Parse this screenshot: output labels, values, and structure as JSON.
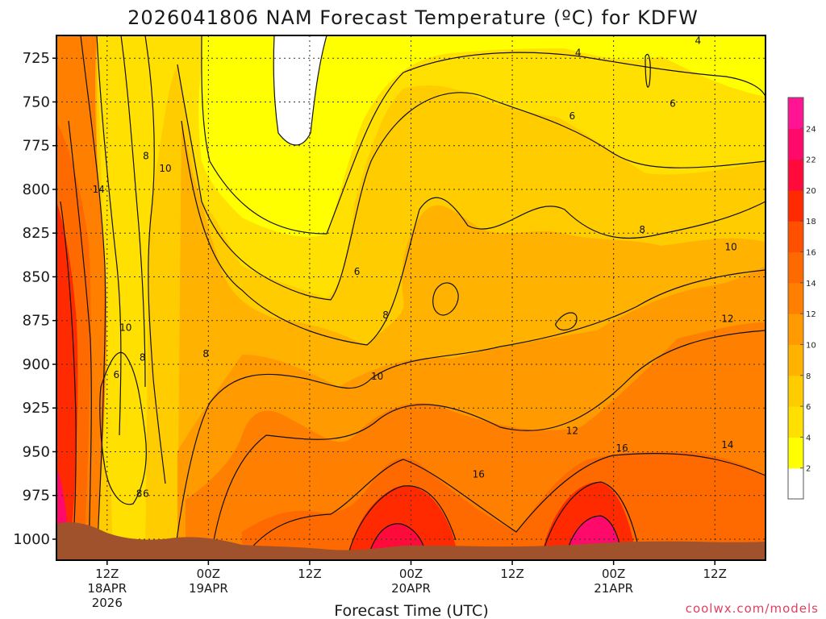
{
  "chart_data": {
    "type": "heatmap",
    "title": "2026041806 NAM Forecast Temperature (ºC) for KDFW",
    "xlabel": "Forecast Time (UTC)",
    "ylabel": "",
    "credit": "coolwx.com/models",
    "y_scale": "pressure (hPa), increasing downward",
    "y_ticks": [
      725,
      750,
      775,
      800,
      825,
      850,
      875,
      900,
      925,
      950,
      975,
      1000
    ],
    "ylim": [
      712,
      1012
    ],
    "x_ticks": [
      {
        "hour": 12,
        "lines": [
          "12Z",
          "18APR",
          "2026"
        ]
      },
      {
        "hour": 24,
        "lines": [
          "00Z",
          "19APR"
        ]
      },
      {
        "hour": 36,
        "lines": [
          "12Z"
        ]
      },
      {
        "hour": 48,
        "lines": [
          "00Z",
          "20APR"
        ]
      },
      {
        "hour": 60,
        "lines": [
          "12Z"
        ]
      },
      {
        "hour": 72,
        "lines": [
          "00Z",
          "21APR"
        ]
      },
      {
        "hour": 84,
        "lines": [
          "12Z"
        ]
      }
    ],
    "xlim": [
      6,
      90
    ],
    "grid": true,
    "colorbar": {
      "ticks": [
        2,
        4,
        6,
        8,
        10,
        12,
        14,
        16,
        18,
        20,
        22,
        24
      ],
      "colors": [
        "#ffffff",
        "#ffff00",
        "#ffe000",
        "#ffcc00",
        "#ffb200",
        "#ff9a00",
        "#ff8000",
        "#ff6a00",
        "#ff5000",
        "#ff2a00",
        "#ff0a3a",
        "#ff0a6a",
        "#ff1493"
      ]
    },
    "contour_labels": [
      {
        "value": "4",
        "hour": 67.8,
        "p": 722
      },
      {
        "value": "4",
        "hour": 82.0,
        "p": 715
      },
      {
        "value": "6",
        "hour": 67.1,
        "p": 758
      },
      {
        "value": "6",
        "hour": 79.0,
        "p": 751
      },
      {
        "value": "8",
        "hour": 16.6,
        "p": 781
      },
      {
        "value": "10",
        "hour": 18.9,
        "p": 788
      },
      {
        "value": "14",
        "hour": 11.0,
        "p": 800
      },
      {
        "value": "8",
        "hour": 75.4,
        "p": 823
      },
      {
        "value": "10",
        "hour": 85.9,
        "p": 833
      },
      {
        "value": "6",
        "hour": 41.6,
        "p": 847
      },
      {
        "value": "8",
        "hour": 45.0,
        "p": 872
      },
      {
        "value": "12",
        "hour": 85.5,
        "p": 874
      },
      {
        "value": "10",
        "hour": 14.2,
        "p": 879
      },
      {
        "value": "8",
        "hour": 16.2,
        "p": 896
      },
      {
        "value": "8",
        "hour": 23.7,
        "p": 894
      },
      {
        "value": "10",
        "hour": 44.0,
        "p": 907
      },
      {
        "value": "6",
        "hour": 13.1,
        "p": 906
      },
      {
        "value": "12",
        "hour": 67.1,
        "p": 938
      },
      {
        "value": "16",
        "hour": 73.0,
        "p": 948
      },
      {
        "value": "14",
        "hour": 85.5,
        "p": 946
      },
      {
        "value": "16",
        "hour": 56.0,
        "p": 963
      },
      {
        "value": "8",
        "hour": 15.8,
        "p": 974
      },
      {
        "value": "6",
        "hour": 16.6,
        "p": 974
      }
    ]
  }
}
